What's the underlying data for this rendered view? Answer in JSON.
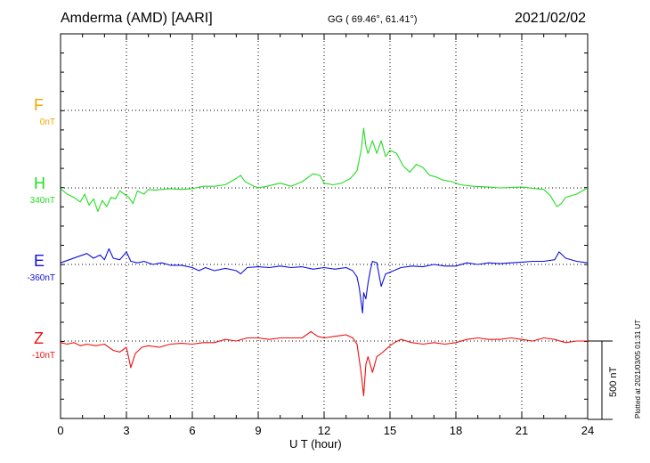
{
  "header": {
    "station": "Amderma (AMD)  [AARI]",
    "coords": "GG ( 69.46°,  61.41°)",
    "date": "2021/02/02"
  },
  "footer": {
    "plotted": "Plotted at 2021/03/05 01:31  UT",
    "scale_label": "500 nT"
  },
  "chart_data": {
    "type": "line",
    "xlabel": "U T (hour)",
    "xlim": [
      0,
      24
    ],
    "xticks": [
      "0",
      "3",
      "6",
      "9",
      "12",
      "15",
      "18",
      "21",
      "24"
    ],
    "grid": true,
    "scale_bar_nT": 500,
    "series": [
      {
        "name": "F",
        "baseline": "0nT",
        "color": "#f0a800",
        "points": []
      },
      {
        "name": "H",
        "baseline": "340nT",
        "color": "#22dd22",
        "points": [
          [
            0,
            -5
          ],
          [
            0.3,
            -40
          ],
          [
            0.6,
            -60
          ],
          [
            0.9,
            -90
          ],
          [
            1.1,
            -40
          ],
          [
            1.3,
            -110
          ],
          [
            1.5,
            -70
          ],
          [
            1.7,
            -150
          ],
          [
            1.9,
            -80
          ],
          [
            2.1,
            -120
          ],
          [
            2.3,
            -60
          ],
          [
            2.5,
            -70
          ],
          [
            2.7,
            -20
          ],
          [
            2.9,
            -40
          ],
          [
            3.1,
            -60
          ],
          [
            3.3,
            -100
          ],
          [
            3.5,
            -20
          ],
          [
            3.8,
            -40
          ],
          [
            4.0,
            -10
          ],
          [
            4.3,
            -15
          ],
          [
            4.6,
            -10
          ],
          [
            5.0,
            -5
          ],
          [
            5.5,
            -10
          ],
          [
            6.0,
            -5
          ],
          [
            6.5,
            10
          ],
          [
            7.0,
            10
          ],
          [
            7.5,
            20
          ],
          [
            8.0,
            60
          ],
          [
            8.2,
            80
          ],
          [
            8.4,
            40
          ],
          [
            8.8,
            10
          ],
          [
            9.0,
            0
          ],
          [
            9.4,
            10
          ],
          [
            10.0,
            30
          ],
          [
            10.5,
            10
          ],
          [
            11.0,
            40
          ],
          [
            11.5,
            90
          ],
          [
            11.8,
            80
          ],
          [
            12.0,
            30
          ],
          [
            12.4,
            20
          ],
          [
            12.8,
            30
          ],
          [
            13.2,
            60
          ],
          [
            13.5,
            110
          ],
          [
            13.7,
            250
          ],
          [
            13.8,
            380
          ],
          [
            13.9,
            270
          ],
          [
            14.0,
            220
          ],
          [
            14.2,
            300
          ],
          [
            14.4,
            220
          ],
          [
            14.6,
            300
          ],
          [
            14.8,
            200
          ],
          [
            15.0,
            240
          ],
          [
            15.3,
            220
          ],
          [
            15.6,
            140
          ],
          [
            15.9,
            100
          ],
          [
            16.2,
            150
          ],
          [
            16.5,
            130
          ],
          [
            16.8,
            80
          ],
          [
            17.1,
            70
          ],
          [
            17.4,
            50
          ],
          [
            17.8,
            40
          ],
          [
            18.2,
            20
          ],
          [
            18.8,
            10
          ],
          [
            19.5,
            5
          ],
          [
            20.0,
            0
          ],
          [
            21.0,
            5
          ],
          [
            22.0,
            -10
          ],
          [
            22.3,
            -50
          ],
          [
            22.6,
            -120
          ],
          [
            22.8,
            -100
          ],
          [
            23.0,
            -60
          ],
          [
            23.5,
            -40
          ],
          [
            24,
            0
          ]
        ]
      },
      {
        "name": "E",
        "baseline": "-360nT",
        "color": "#1010dd",
        "points": [
          [
            0,
            10
          ],
          [
            0.4,
            30
          ],
          [
            0.8,
            50
          ],
          [
            1.2,
            70
          ],
          [
            1.5,
            40
          ],
          [
            1.8,
            60
          ],
          [
            2.0,
            30
          ],
          [
            2.2,
            100
          ],
          [
            2.4,
            40
          ],
          [
            2.7,
            30
          ],
          [
            3.0,
            80
          ],
          [
            3.2,
            20
          ],
          [
            3.5,
            10
          ],
          [
            3.8,
            20
          ],
          [
            4.2,
            0
          ],
          [
            4.6,
            10
          ],
          [
            5.0,
            -5
          ],
          [
            5.5,
            -5
          ],
          [
            6.0,
            -20
          ],
          [
            6.3,
            -40
          ],
          [
            6.6,
            -20
          ],
          [
            7.0,
            -40
          ],
          [
            7.5,
            -25
          ],
          [
            8.0,
            -40
          ],
          [
            8.2,
            -60
          ],
          [
            8.5,
            -20
          ],
          [
            9.0,
            -15
          ],
          [
            9.5,
            -20
          ],
          [
            10.0,
            -10
          ],
          [
            10.5,
            -20
          ],
          [
            11.0,
            -15
          ],
          [
            11.5,
            -30
          ],
          [
            12.0,
            -20
          ],
          [
            12.5,
            -30
          ],
          [
            13.0,
            -20
          ],
          [
            13.3,
            -40
          ],
          [
            13.5,
            -80
          ],
          [
            13.6,
            -150
          ],
          [
            13.75,
            -310
          ],
          [
            13.8,
            -180
          ],
          [
            13.9,
            -220
          ],
          [
            14.0,
            -120
          ],
          [
            14.1,
            -40
          ],
          [
            14.2,
            20
          ],
          [
            14.4,
            10
          ],
          [
            14.6,
            -140
          ],
          [
            14.8,
            -60
          ],
          [
            15.0,
            -50
          ],
          [
            15.5,
            -20
          ],
          [
            16.0,
            -10
          ],
          [
            16.5,
            -15
          ],
          [
            17.0,
            0
          ],
          [
            17.5,
            -10
          ],
          [
            18.0,
            -10
          ],
          [
            18.5,
            10
          ],
          [
            19.0,
            0
          ],
          [
            19.5,
            10
          ],
          [
            20.0,
            5
          ],
          [
            20.5,
            10
          ],
          [
            21.0,
            15
          ],
          [
            21.5,
            20
          ],
          [
            22.0,
            20
          ],
          [
            22.5,
            30
          ],
          [
            22.7,
            80
          ],
          [
            23.0,
            40
          ],
          [
            23.5,
            20
          ],
          [
            24,
            10
          ]
        ]
      },
      {
        "name": "Z",
        "baseline": "-10nT",
        "color": "#ee1111",
        "points": [
          [
            0,
            -10
          ],
          [
            0.3,
            -20
          ],
          [
            0.6,
            -10
          ],
          [
            0.9,
            -30
          ],
          [
            1.2,
            -20
          ],
          [
            1.6,
            -30
          ],
          [
            2.0,
            -20
          ],
          [
            2.4,
            -60
          ],
          [
            2.7,
            -70
          ],
          [
            3.0,
            -40
          ],
          [
            3.2,
            -170
          ],
          [
            3.4,
            -80
          ],
          [
            3.7,
            -40
          ],
          [
            4.0,
            -30
          ],
          [
            4.5,
            -40
          ],
          [
            5.0,
            -20
          ],
          [
            5.5,
            -15
          ],
          [
            6.0,
            -20
          ],
          [
            6.5,
            -10
          ],
          [
            7.0,
            -10
          ],
          [
            7.5,
            10
          ],
          [
            8.0,
            0
          ],
          [
            8.5,
            20
          ],
          [
            9.0,
            20
          ],
          [
            9.5,
            10
          ],
          [
            10.0,
            20
          ],
          [
            10.5,
            20
          ],
          [
            11.0,
            20
          ],
          [
            11.4,
            60
          ],
          [
            11.7,
            30
          ],
          [
            12.0,
            20
          ],
          [
            12.5,
            30
          ],
          [
            13.0,
            40
          ],
          [
            13.3,
            20
          ],
          [
            13.5,
            -20
          ],
          [
            13.6,
            -120
          ],
          [
            13.7,
            -220
          ],
          [
            13.8,
            -350
          ],
          [
            13.9,
            -150
          ],
          [
            14.0,
            -100
          ],
          [
            14.2,
            -200
          ],
          [
            14.4,
            -100
          ],
          [
            14.6,
            -80
          ],
          [
            15.0,
            -30
          ],
          [
            15.2,
            -10
          ],
          [
            15.5,
            10
          ],
          [
            16.0,
            -10
          ],
          [
            16.5,
            -20
          ],
          [
            17.0,
            -10
          ],
          [
            17.5,
            -20
          ],
          [
            18.0,
            -10
          ],
          [
            18.5,
            10
          ],
          [
            19.0,
            20
          ],
          [
            19.5,
            10
          ],
          [
            20.0,
            10
          ],
          [
            20.5,
            20
          ],
          [
            21.0,
            10
          ],
          [
            21.5,
            0
          ],
          [
            22.0,
            20
          ],
          [
            22.5,
            10
          ],
          [
            23.0,
            -10
          ],
          [
            23.5,
            0
          ],
          [
            24,
            0
          ]
        ]
      }
    ]
  }
}
